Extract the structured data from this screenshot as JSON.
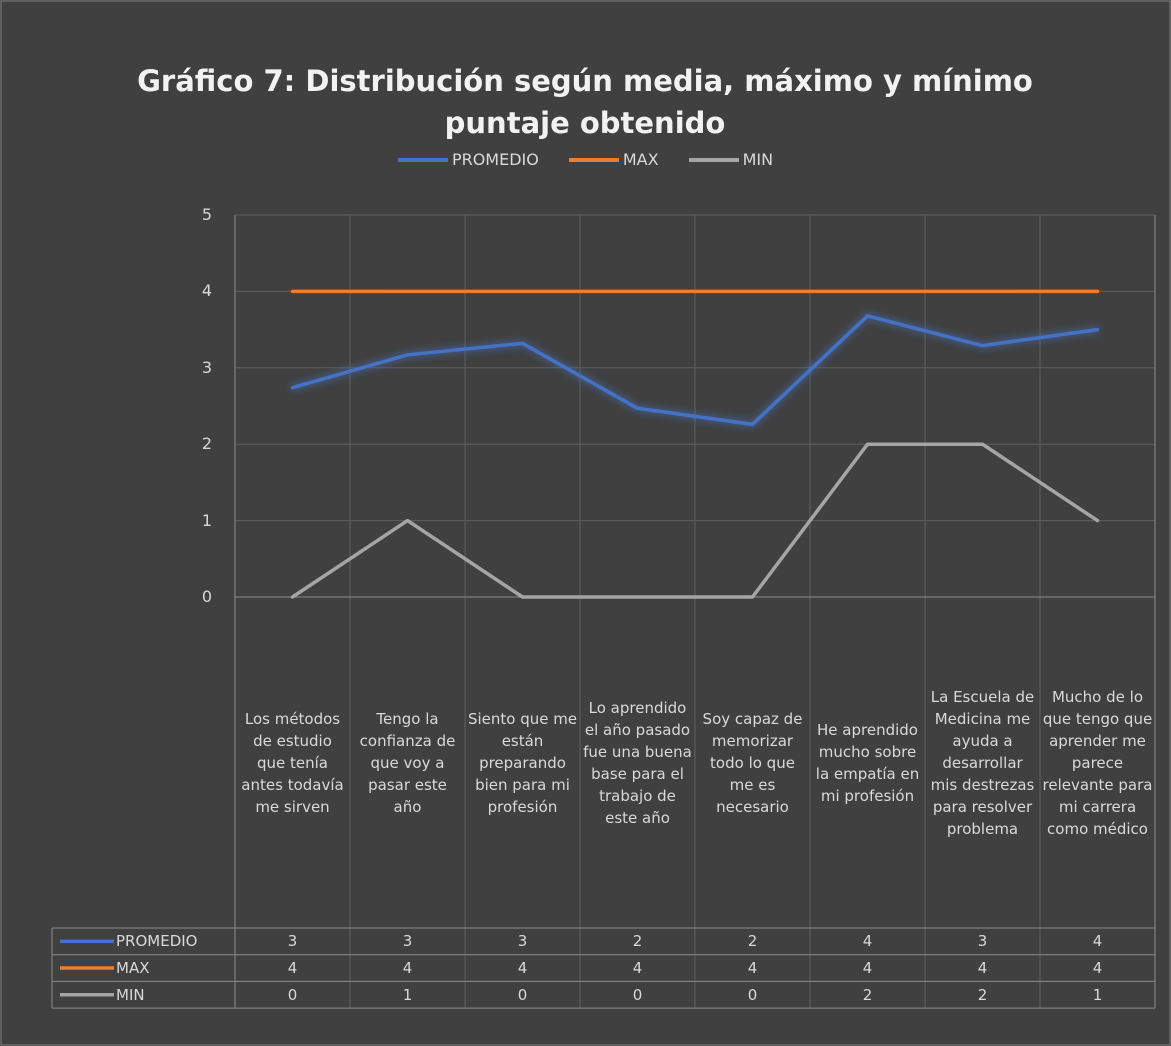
{
  "chart_data": {
    "type": "line",
    "title": "Gráfico 7: Distribución según media, máximo y mínimo puntaje obtenido",
    "categories": [
      "Los métodos de estudio que tenía antes todavía me sirven",
      "Tengo la confianza de que voy a pasar este año",
      "Siento que me están preparando bien para mi profesión",
      "Lo aprendido el año pasado fue una buena base para el trabajo de este año",
      "Soy capaz de memorizar todo lo que me es necesario",
      "He aprendido mucho sobre la empatía en mi profesión",
      "La Escuela de Medicina me ayuda a desarrollar mis destrezas para resolver problema",
      "Mucho de lo que tengo que aprender me parece relevante para mi carrera como médico"
    ],
    "series": [
      {
        "name": "PROMEDIO",
        "color": "#4472c4",
        "values": [
          2.74,
          3.17,
          3.32,
          2.47,
          2.26,
          3.68,
          3.29,
          3.5
        ],
        "value_labels": [
          "3",
          "3",
          "3",
          "2",
          "2",
          "4",
          "3",
          "4"
        ]
      },
      {
        "name": "MAX",
        "color": "#ed7d31",
        "values": [
          4,
          4,
          4,
          4,
          4,
          4,
          4,
          4
        ]
      },
      {
        "name": "MIN",
        "color": "#a5a5a5",
        "values": [
          0,
          1,
          0,
          0,
          0,
          2,
          2,
          1
        ]
      }
    ],
    "ylim": [
      0,
      5
    ],
    "yticks": [
      0,
      1,
      2,
      3,
      4,
      5
    ],
    "grid": true,
    "legend": "top",
    "data_table": true
  }
}
